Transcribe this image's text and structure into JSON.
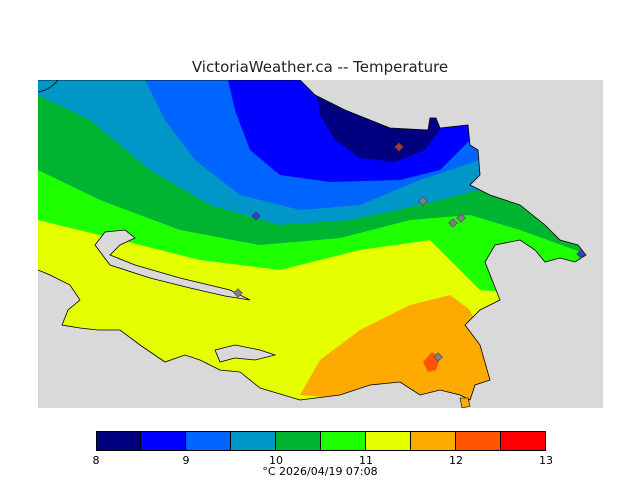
{
  "title": "VictoriaWeather.ca -- Temperature",
  "caption": "°C  2026/04/19 07:08",
  "legend": {
    "ticks": [
      "8",
      "9",
      "10",
      "11",
      "12",
      "13"
    ],
    "bands": [
      {
        "color": "#000080"
      },
      {
        "color": "#0000ff"
      },
      {
        "color": "#0064ff"
      },
      {
        "color": "#0096c8"
      },
      {
        "color": "#00b432"
      },
      {
        "color": "#1eff00"
      },
      {
        "color": "#e6ff00"
      },
      {
        "color": "#ffaa00"
      },
      {
        "color": "#ff5500"
      },
      {
        "color": "#ff0000"
      }
    ]
  },
  "colors": {
    "background_land_mask": "#d9d9d9",
    "station_marker": "#808080"
  }
}
